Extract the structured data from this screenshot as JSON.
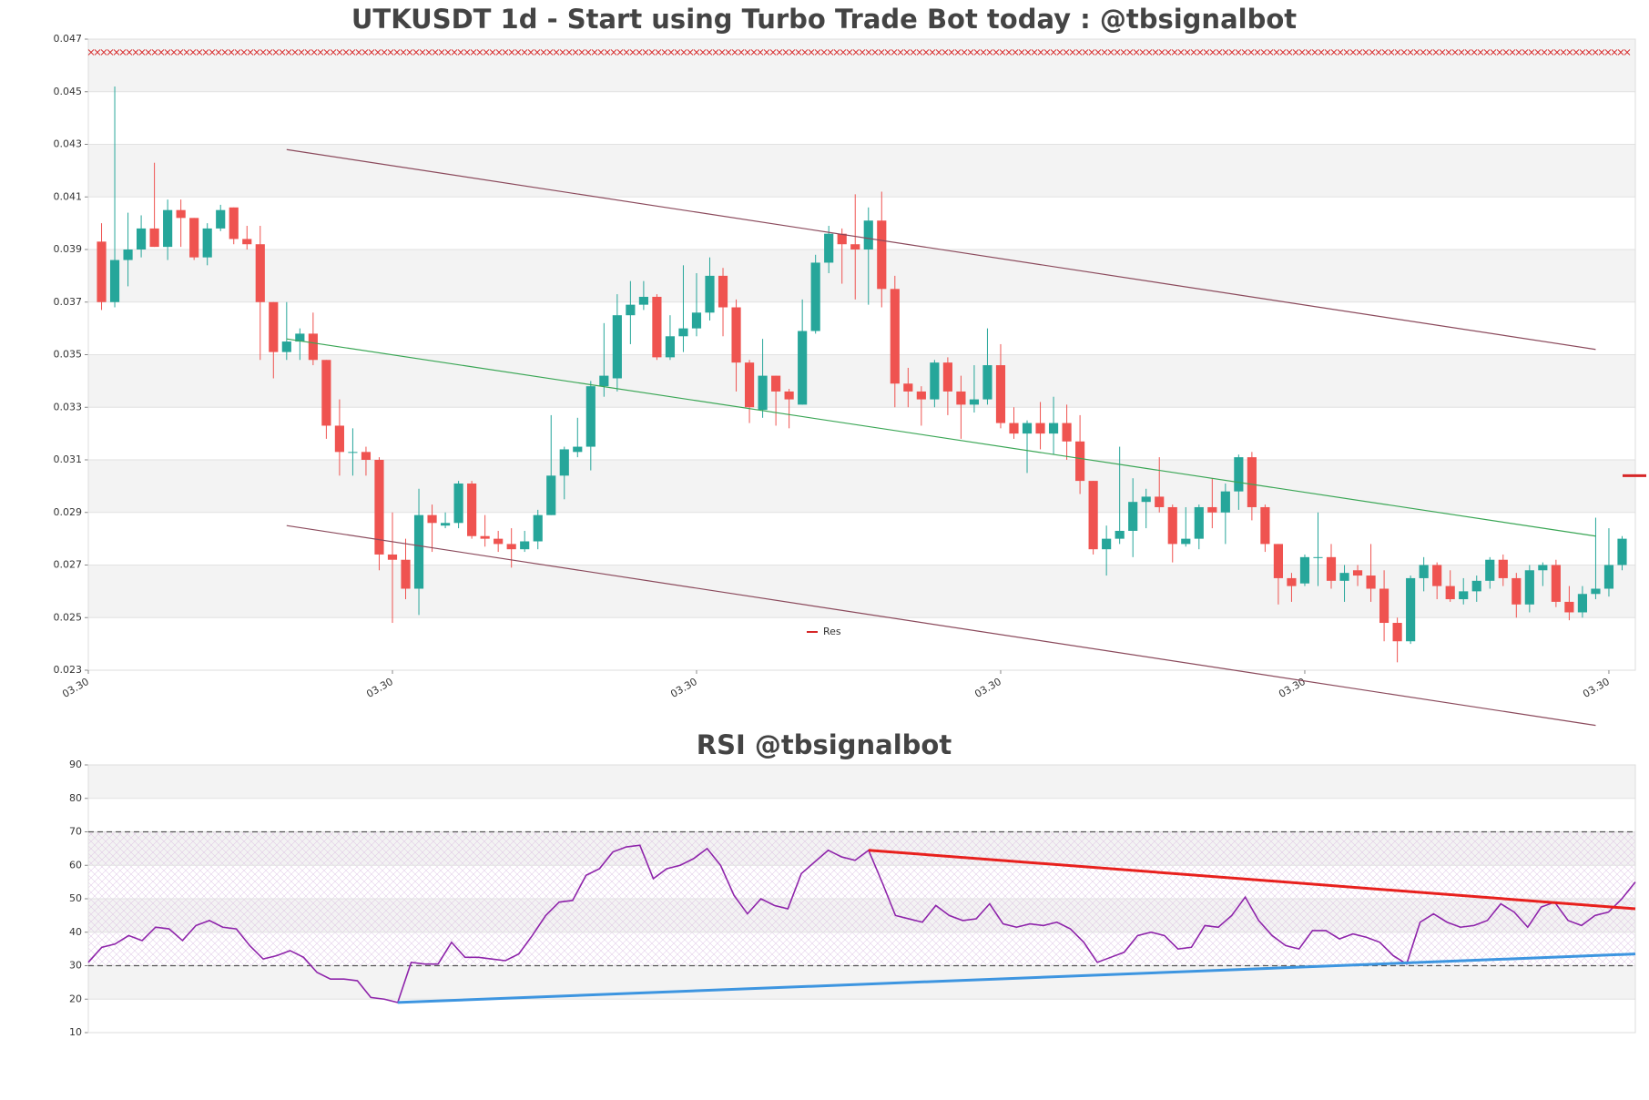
{
  "chart_data": [
    {
      "type": "candlestick",
      "title": "UTKUSDT 1d - Start using Turbo Trade Bot today : @tbsignalbot",
      "up_color": "#26a69a",
      "down_color": "#ef5350",
      "xlim": [
        -1,
        116
      ],
      "xticks": [
        {
          "value": -1,
          "label": "03.30"
        },
        {
          "value": 22,
          "label": "03.30"
        },
        {
          "value": 45,
          "label": "03.30"
        },
        {
          "value": 68,
          "label": "03.30"
        },
        {
          "value": 91,
          "label": "03.30"
        },
        {
          "value": 114,
          "label": "03.30"
        }
      ],
      "ylim": [
        0.023,
        0.047
      ],
      "yticks": [
        0.023,
        0.025,
        0.027,
        0.029,
        0.031,
        0.033,
        0.035,
        0.037,
        0.039,
        0.041,
        0.043,
        0.045,
        0.047
      ],
      "open": [
        0.0393,
        0.037,
        0.0386,
        0.039,
        0.0398,
        0.0391,
        0.0405,
        0.0402,
        0.0387,
        0.0398,
        0.0406,
        0.0394,
        0.0392,
        0.037,
        0.0351,
        0.0355,
        0.0358,
        0.0348,
        0.0323,
        0.0313,
        0.0313,
        0.031,
        0.0274,
        0.0272,
        0.0261,
        0.0289,
        0.0285,
        0.0286,
        0.0301,
        0.0281,
        0.028,
        0.0278,
        0.0276,
        0.0279,
        0.0289,
        0.0304,
        0.0313,
        0.0315,
        0.0338,
        0.0341,
        0.0365,
        0.0369,
        0.0372,
        0.0349,
        0.0357,
        0.036,
        0.0366,
        0.038,
        0.0368,
        0.0347,
        0.0329,
        0.0342,
        0.0336,
        0.0331,
        0.0359,
        0.0385,
        0.0396,
        0.0392,
        0.039,
        0.0401,
        0.0375,
        0.0339,
        0.0336,
        0.0333,
        0.0347,
        0.0336,
        0.0331,
        0.0333,
        0.0346,
        0.0324,
        0.032,
        0.0324,
        0.032,
        0.0324,
        0.0317,
        0.0302,
        0.0276,
        0.028,
        0.0283,
        0.0294,
        0.0296,
        0.0292,
        0.0278,
        0.028,
        0.0292,
        0.029,
        0.0298,
        0.0311,
        0.0292,
        0.0278,
        0.0265,
        0.0263,
        0.0273,
        0.0273,
        0.0264,
        0.0268,
        0.0266,
        0.0261,
        0.0248,
        0.0241,
        0.0265,
        0.027,
        0.0262,
        0.0257,
        0.026,
        0.0264,
        0.0272,
        0.0265,
        0.0255,
        0.0268,
        0.027,
        0.0256,
        0.0252,
        0.0259,
        0.0261,
        0.027
      ],
      "high": [
        0.04,
        0.0452,
        0.0404,
        0.0403,
        0.0423,
        0.0409,
        0.0409,
        0.0402,
        0.04,
        0.0407,
        0.0406,
        0.0399,
        0.0399,
        0.037,
        0.037,
        0.036,
        0.0366,
        0.0348,
        0.0333,
        0.0322,
        0.0315,
        0.0311,
        0.029,
        0.028,
        0.0299,
        0.0293,
        0.029,
        0.0302,
        0.0302,
        0.0289,
        0.0283,
        0.0284,
        0.0283,
        0.0291,
        0.0327,
        0.0315,
        0.0326,
        0.034,
        0.0362,
        0.0373,
        0.0378,
        0.0378,
        0.0373,
        0.0365,
        0.0384,
        0.0381,
        0.0387,
        0.0383,
        0.0371,
        0.0348,
        0.0356,
        0.0342,
        0.0337,
        0.0371,
        0.0388,
        0.0399,
        0.0398,
        0.0411,
        0.0406,
        0.0412,
        0.038,
        0.0345,
        0.0338,
        0.0348,
        0.0349,
        0.0342,
        0.0346,
        0.036,
        0.0354,
        0.033,
        0.0325,
        0.0332,
        0.0334,
        0.0331,
        0.0327,
        0.0302,
        0.0285,
        0.0315,
        0.0303,
        0.0299,
        0.0311,
        0.0293,
        0.0292,
        0.0293,
        0.0303,
        0.0301,
        0.0312,
        0.0313,
        0.0293,
        0.0278,
        0.0267,
        0.0274,
        0.029,
        0.0278,
        0.027,
        0.027,
        0.0278,
        0.0268,
        0.025,
        0.0266,
        0.0273,
        0.0271,
        0.0268,
        0.0265,
        0.0266,
        0.0273,
        0.0274,
        0.0267,
        0.027,
        0.0271,
        0.0272,
        0.0262,
        0.0262,
        0.0288,
        0.0284,
        0.0281
      ],
      "low": [
        0.0367,
        0.0368,
        0.0376,
        0.0387,
        0.0391,
        0.0386,
        0.0391,
        0.0386,
        0.0384,
        0.0397,
        0.0392,
        0.039,
        0.0348,
        0.0341,
        0.0348,
        0.0348,
        0.0346,
        0.0318,
        0.0304,
        0.0304,
        0.0304,
        0.0268,
        0.0248,
        0.0257,
        0.0251,
        0.0275,
        0.0284,
        0.0284,
        0.028,
        0.0277,
        0.0275,
        0.0269,
        0.0275,
        0.0276,
        0.0289,
        0.0295,
        0.0311,
        0.0306,
        0.0334,
        0.0336,
        0.0354,
        0.0367,
        0.0348,
        0.0348,
        0.0351,
        0.0357,
        0.0363,
        0.0357,
        0.0336,
        0.0324,
        0.0326,
        0.0323,
        0.0322,
        0.0331,
        0.0358,
        0.0381,
        0.0377,
        0.0371,
        0.0369,
        0.0368,
        0.033,
        0.033,
        0.0323,
        0.033,
        0.0327,
        0.0318,
        0.0328,
        0.0331,
        0.0322,
        0.0318,
        0.0305,
        0.0314,
        0.0312,
        0.031,
        0.0297,
        0.0274,
        0.0266,
        0.0278,
        0.0273,
        0.0284,
        0.029,
        0.0271,
        0.0277,
        0.0276,
        0.0284,
        0.0278,
        0.0291,
        0.0287,
        0.0275,
        0.0255,
        0.0256,
        0.0262,
        0.0262,
        0.0261,
        0.0256,
        0.0262,
        0.0256,
        0.0241,
        0.0233,
        0.024,
        0.026,
        0.0257,
        0.0256,
        0.0255,
        0.0256,
        0.0261,
        0.0262,
        0.025,
        0.0252,
        0.0262,
        0.0254,
        0.0249,
        0.025,
        0.0257,
        0.0258,
        0.0268
      ],
      "close": [
        0.037,
        0.0386,
        0.039,
        0.0398,
        0.0391,
        0.0405,
        0.0402,
        0.0387,
        0.0398,
        0.0405,
        0.0394,
        0.0392,
        0.037,
        0.0351,
        0.0355,
        0.0358,
        0.0348,
        0.0323,
        0.0313,
        0.0313,
        0.031,
        0.0274,
        0.0272,
        0.0261,
        0.0289,
        0.0286,
        0.0286,
        0.0301,
        0.0281,
        0.028,
        0.0278,
        0.0276,
        0.0279,
        0.0289,
        0.0304,
        0.0314,
        0.0315,
        0.0338,
        0.0342,
        0.0365,
        0.0369,
        0.0372,
        0.0349,
        0.0357,
        0.036,
        0.0366,
        0.038,
        0.0368,
        0.0347,
        0.033,
        0.0342,
        0.0336,
        0.0333,
        0.0359,
        0.0385,
        0.0396,
        0.0392,
        0.039,
        0.0401,
        0.0375,
        0.0339,
        0.0336,
        0.0333,
        0.0347,
        0.0336,
        0.0331,
        0.0333,
        0.0346,
        0.0324,
        0.032,
        0.0324,
        0.032,
        0.0324,
        0.0317,
        0.0302,
        0.0276,
        0.028,
        0.0283,
        0.0294,
        0.0296,
        0.0292,
        0.0278,
        0.028,
        0.0292,
        0.029,
        0.0298,
        0.0311,
        0.0292,
        0.0278,
        0.0265,
        0.0262,
        0.0273,
        0.0273,
        0.0264,
        0.0267,
        0.0266,
        0.0261,
        0.0248,
        0.0241,
        0.0265,
        0.027,
        0.0262,
        0.0257,
        0.026,
        0.0264,
        0.0272,
        0.0265,
        0.0255,
        0.0268,
        0.027,
        0.0256,
        0.0252,
        0.0259,
        0.0261,
        0.027,
        0.028
      ],
      "trendlines": [
        {
          "x": [
            14,
            113
          ],
          "values": [
            0.0428,
            0.0352
          ],
          "color": "#8b4a5c"
        },
        {
          "x": [
            14,
            113
          ],
          "values": [
            0.0356,
            0.0281
          ],
          "color": "#3aa655"
        },
        {
          "x": [
            14,
            113
          ],
          "values": [
            0.0285,
            0.0209
          ],
          "color": "#8b4a5c"
        }
      ],
      "marker_line": {
        "value": 0.0465,
        "color": "#d62728"
      },
      "series": [
        {
          "name": "Res",
          "color": "#d62728",
          "value": 0.0304
        }
      ],
      "grid": true
    },
    {
      "type": "line",
      "title": "RSI @tbsignalbot",
      "color": "#8e24aa",
      "ylim": [
        10,
        90
      ],
      "yticks": [
        10,
        20,
        30,
        40,
        50,
        60,
        70,
        80,
        90
      ],
      "values": [
        31,
        35.5,
        36.5,
        39,
        37.5,
        41.5,
        41,
        37.5,
        42,
        43.5,
        41.5,
        41,
        36,
        32,
        33,
        34.5,
        32.5,
        28,
        26,
        26,
        25.5,
        20.5,
        20,
        19,
        31,
        30.5,
        30.5,
        37,
        32.5,
        32.5,
        32,
        31.5,
        33.5,
        39,
        45,
        49,
        49.5,
        57,
        59,
        64,
        65.5,
        66,
        56,
        59,
        60,
        62,
        65,
        60,
        51,
        45.5,
        50,
        48,
        47,
        57.5,
        61,
        64.5,
        62.5,
        61.5,
        64.5,
        55,
        45,
        44,
        43,
        48,
        45,
        43.5,
        44,
        48.5,
        42.5,
        41.5,
        42.5,
        42,
        43,
        41,
        37,
        31,
        32.5,
        34,
        39,
        40,
        39,
        35,
        35.5,
        42,
        41.5,
        45,
        50.5,
        43.5,
        39,
        36,
        35,
        40.5,
        40.5,
        38,
        39.5,
        38.5,
        37,
        33,
        30.5,
        43,
        45.5,
        43,
        41.5,
        42,
        43.5,
        48.5,
        46,
        41.5,
        47.5,
        49,
        43.5,
        42,
        45,
        46,
        50,
        55
      ],
      "hlines": [
        30,
        70
      ],
      "band": [
        30,
        70
      ],
      "trendlines": [
        {
          "x": [
            58,
            115
          ],
          "values": [
            64.5,
            47
          ],
          "color": "#e8201d"
        },
        {
          "x": [
            23,
            115
          ],
          "values": [
            19,
            33.5
          ],
          "color": "#3d95e0"
        }
      ],
      "grid": true
    }
  ]
}
